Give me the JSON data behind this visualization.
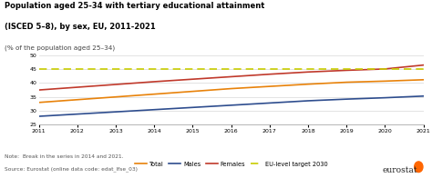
{
  "title_line1": "Population aged 25-34 with tertiary educational attainment",
  "title_line2": "(ISCED 5–8), by sex, EU, 2011-2021",
  "subtitle": "(% of the population aged 25–34)",
  "years": [
    2011,
    2012,
    2013,
    2014,
    2015,
    2016,
    2017,
    2018,
    2019,
    2020,
    2021
  ],
  "total": [
    33.0,
    34.0,
    35.0,
    36.0,
    37.0,
    38.0,
    38.8,
    39.6,
    40.3,
    40.7,
    41.2
  ],
  "males": [
    28.0,
    28.8,
    29.6,
    30.4,
    31.2,
    32.0,
    32.8,
    33.6,
    34.2,
    34.7,
    35.3
  ],
  "females": [
    37.5,
    38.5,
    39.5,
    40.5,
    41.4,
    42.3,
    43.2,
    44.0,
    44.6,
    45.1,
    46.5
  ],
  "eu_target": 45.0,
  "color_total": "#e8820a",
  "color_males": "#2e4d8e",
  "color_females": "#c0392b",
  "color_target": "#c8cc00",
  "ylim": [
    25,
    52
  ],
  "yticks": [
    25,
    30,
    35,
    40,
    45,
    50
  ],
  "note": "Note:  Break in the series in 2014 and 2021.",
  "source": "Source: Eurostat (online data code: edat_lfse_03)",
  "bg_color": "#ffffff"
}
